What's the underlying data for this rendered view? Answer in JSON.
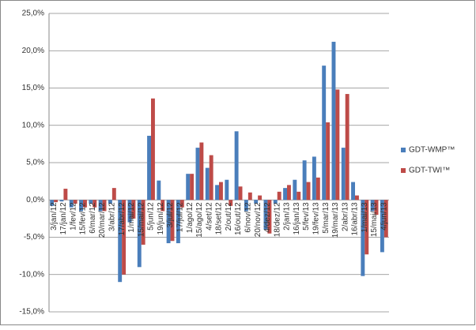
{
  "chart_data": {
    "type": "bar",
    "categories": [
      "3/jan/12",
      "17/jan/12",
      "1/fev/12",
      "15/fev/12",
      "6/mar/12",
      "20/mar/12",
      "3/abr/12",
      "17/abr/12",
      "1/mai/12",
      "15/mai/12",
      "5/jun/12",
      "19/jun/12",
      "3/jul/12",
      "17/jul/12",
      "1/ago/12",
      "15/ago/12",
      "4/set/12",
      "18/set/12",
      "2/out/12",
      "16/out/12",
      "6/nov/12",
      "20/nov/12",
      "4/dez/12",
      "18/dez/12",
      "2/jan/13",
      "16/jan/13",
      "5/fev/13",
      "19/fev/13",
      "5/mar/13",
      "19/mar/13",
      "2/abr/13",
      "16/abr/13",
      "1/mai/13",
      "15/mai/13",
      "4/jun/13"
    ],
    "series": [
      {
        "name": "GDT-WMP™",
        "color": "#4a7ebb",
        "values": [
          -0.8,
          -0.2,
          -1.0,
          -1.5,
          -0.5,
          -1.5,
          -0.5,
          -11.0,
          -3.0,
          -9.0,
          8.6,
          2.6,
          -5.8,
          -5.8,
          3.5,
          7.0,
          4.3,
          2.0,
          2.7,
          9.2,
          -1.5,
          -0.5,
          -4.0,
          -0.5,
          1.6,
          2.7,
          5.3,
          5.8,
          18.0,
          21.2,
          7.0,
          2.4,
          -10.2,
          -1.5,
          -7.0
        ]
      },
      {
        "name": "GDT-TWI™",
        "color": "#be4b48",
        "values": [
          -0.3,
          1.5,
          -0.5,
          -1.0,
          -1.0,
          -1.5,
          1.6,
          -10.0,
          -2.5,
          -6.0,
          13.6,
          -1.5,
          -5.5,
          -1.0,
          3.5,
          7.7,
          6.0,
          2.4,
          -0.8,
          1.8,
          1.0,
          0.6,
          -4.5,
          1.1,
          2.0,
          1.1,
          2.4,
          3.0,
          10.4,
          14.8,
          14.2,
          0.6,
          -7.3,
          -2.0,
          -5.0
        ]
      }
    ],
    "ylim": [
      -15,
      25
    ],
    "yticks": [
      {
        "value": -15,
        "label": "-15,0%"
      },
      {
        "value": -10,
        "label": "-10,0%"
      },
      {
        "value": -5,
        "label": "-5,0%"
      },
      {
        "value": 0,
        "label": "0,0%"
      },
      {
        "value": 5,
        "label": "5,0%"
      },
      {
        "value": 10,
        "label": "10,0%"
      },
      {
        "value": 15,
        "label": "15,0%"
      },
      {
        "value": 20,
        "label": "20,0%"
      },
      {
        "value": 25,
        "label": "25,0%"
      }
    ],
    "grid": true,
    "legend": "right"
  }
}
